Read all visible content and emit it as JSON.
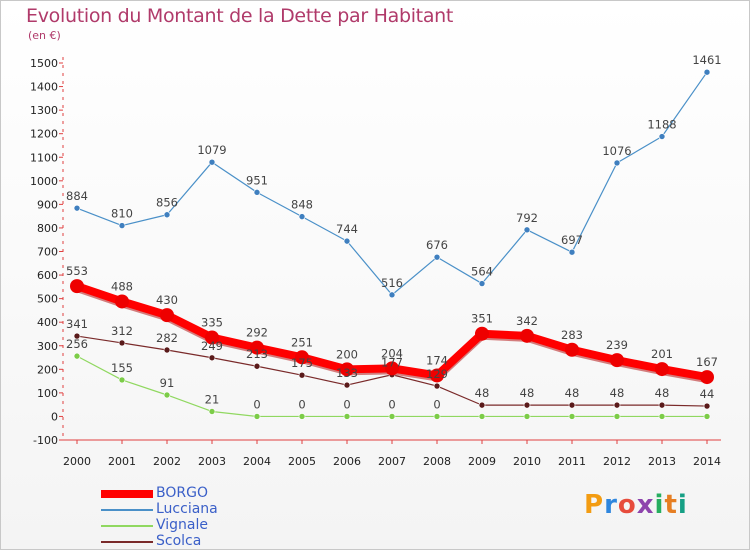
{
  "header": {
    "title": "Evolution du Montant de la Dette par Habitant",
    "subtitle": "(en €)"
  },
  "logo": {
    "text": "Proxiti",
    "colors": [
      "#f39c12",
      "#2e86de",
      "#e74c3c",
      "#8e44ad",
      "#27ae60",
      "#e67e22",
      "#16a085"
    ]
  },
  "chart_data": {
    "type": "line",
    "title": "Evolution du Montant de la Dette par Habitant",
    "subtitle": "(en €)",
    "x": [
      "2000",
      "2001",
      "2002",
      "2003",
      "2004",
      "2005",
      "2006",
      "2007",
      "2008",
      "2009",
      "2010",
      "2011",
      "2012",
      "2013",
      "2014"
    ],
    "ylim": [
      -100,
      1500
    ],
    "yticks": [
      "-100",
      "0",
      "100",
      "200",
      "300",
      "400",
      "500",
      "600",
      "700",
      "800",
      "900",
      "1000",
      "1100",
      "1200",
      "1300",
      "1400",
      "1500"
    ],
    "grid": false,
    "legend_position": "bottom-left",
    "series": [
      {
        "name": "Lucciana",
        "color": "#4a90c8",
        "marker": "#3f7fbf",
        "values": [
          884,
          810,
          856,
          1079,
          951,
          848,
          744,
          516,
          676,
          564,
          792,
          697,
          1076,
          1188,
          1461
        ],
        "labels": [
          "884",
          "810",
          "856",
          "1079",
          "951",
          "848",
          "744",
          "516",
          "676",
          "564",
          "792",
          "697",
          "1076",
          "1188",
          "1461"
        ]
      },
      {
        "name": "Vignale",
        "color": "#90d860",
        "marker": "#7ccc48",
        "values": [
          256,
          155,
          91,
          21,
          0,
          0,
          0,
          0,
          0,
          0,
          0,
          0,
          0,
          0,
          0
        ],
        "labels": [
          "256",
          "155",
          "91",
          "21",
          "0",
          "0",
          "0",
          "0",
          "0",
          "",
          "",
          "",
          "",
          "",
          ""
        ]
      },
      {
        "name": "Scolca",
        "color": "#7a2a2a",
        "marker": "#5a1a1a",
        "values": [
          341,
          312,
          282,
          249,
          213,
          175,
          133,
          177,
          129,
          48,
          48,
          48,
          48,
          48,
          44
        ],
        "labels": [
          "341",
          "312",
          "282",
          "249",
          "213",
          "175",
          "133",
          "177",
          "129",
          "48",
          "48",
          "48",
          "48",
          "48",
          "44"
        ]
      },
      {
        "name": "BORGO",
        "color": "#ff0000",
        "marker": "#ee0000",
        "values": [
          553,
          488,
          430,
          335,
          292,
          251,
          200,
          204,
          174,
          351,
          342,
          283,
          239,
          201,
          167
        ],
        "labels": [
          "553",
          "488",
          "430",
          "335",
          "292",
          "251",
          "200",
          "204",
          "174",
          "351",
          "342",
          "283",
          "239",
          "201",
          "167"
        ]
      }
    ],
    "legend": [
      "BORGO",
      "Lucciana",
      "Vignale",
      "Scolca"
    ]
  }
}
